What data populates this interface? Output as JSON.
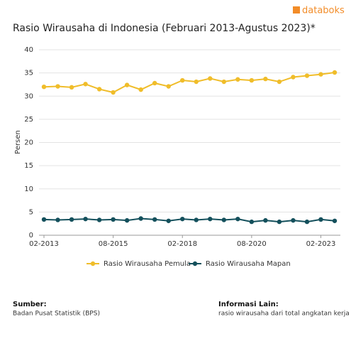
{
  "brand": "databoks",
  "chart_data": {
    "type": "line",
    "title": "Rasio Wirausaha di Indonesia (Februari 2013-Agustus 2023)*",
    "ylabel": "Persen",
    "categories": [
      "02-2013",
      null,
      null,
      null,
      null,
      "08-2015",
      null,
      null,
      null,
      null,
      "02-2018",
      null,
      null,
      null,
      null,
      "08-2020",
      null,
      null,
      null,
      null,
      "02-2023",
      null
    ],
    "series": [
      {
        "name": "Rasio Wirausaha Pemula",
        "color": "#f0bd2a",
        "values": [
          32.0,
          32.1,
          31.9,
          32.6,
          31.5,
          30.8,
          32.4,
          31.4,
          32.8,
          32.1,
          33.4,
          33.1,
          33.8,
          33.1,
          33.6,
          33.4,
          33.7,
          33.1,
          34.1,
          34.4,
          34.7,
          35.1
        ]
      },
      {
        "name": "Rasio Wirausaha Mapan",
        "color": "#14505c",
        "values": [
          3.4,
          3.3,
          3.4,
          3.5,
          3.3,
          3.4,
          3.2,
          3.6,
          3.4,
          3.1,
          3.5,
          3.3,
          3.5,
          3.3,
          3.5,
          2.9,
          3.2,
          2.9,
          3.2,
          2.9,
          3.4,
          3.1
        ]
      }
    ],
    "ylim": [
      0,
      40
    ],
    "yticks": [
      0,
      5,
      10,
      15,
      20,
      25,
      30,
      35,
      40
    ],
    "grid": true,
    "legend": "bottom"
  },
  "footer": {
    "source_title": "Sumber:",
    "source": "Badan Pusat Statistik (BPS)",
    "info_title": "Informasi Lain:",
    "info": "rasio wirausaha dari total angkatan kerja"
  }
}
